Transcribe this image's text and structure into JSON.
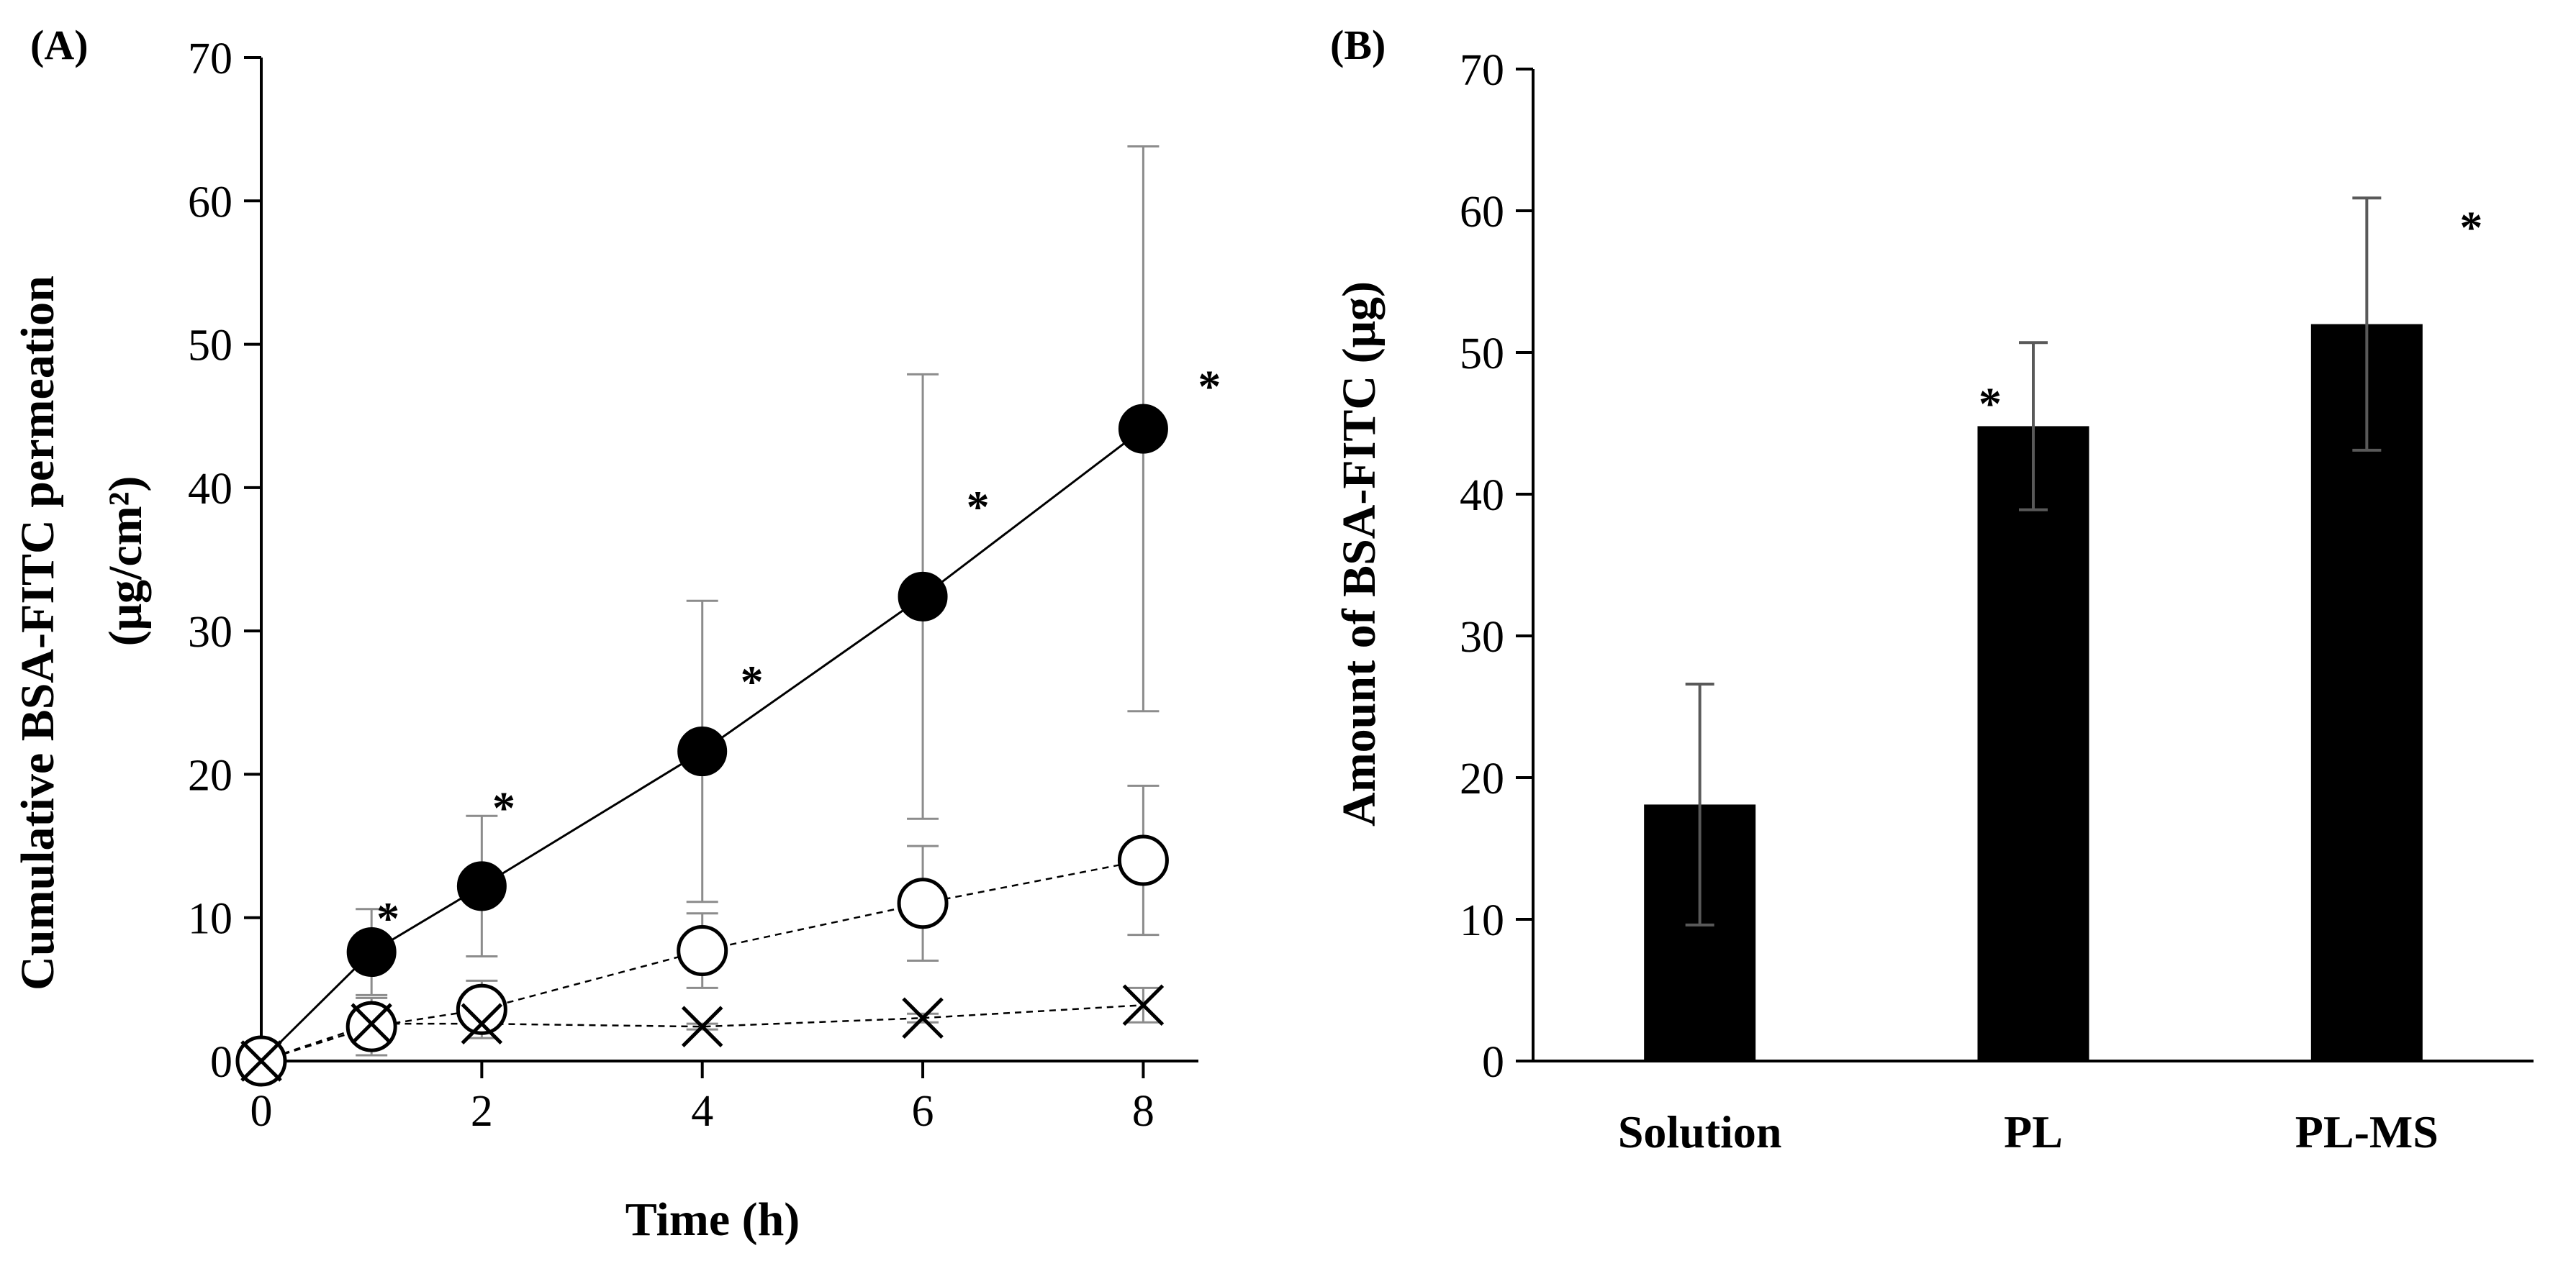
{
  "chart_data": [
    {
      "panel_label": "(A)",
      "type": "line",
      "xlabel": "Time (h)",
      "ylabel_line1": "Cumulative BSA-FITC permeation",
      "ylabel_line2": "(μg/cm²)",
      "xlim": [
        0,
        8.5
      ],
      "ylim": [
        0,
        70
      ],
      "xticks": [
        "0",
        "2",
        "4",
        "6",
        "8"
      ],
      "yticks": [
        "0",
        "10",
        "20",
        "30",
        "40",
        "50",
        "60",
        "70"
      ],
      "x": [
        0,
        1,
        2,
        4,
        6,
        8
      ],
      "series": [
        {
          "name": "filled-circle",
          "marker": "filled-circle",
          "line": "solid",
          "values": [
            0,
            7.6,
            12.2,
            21.6,
            32.4,
            44.1
          ],
          "errors": [
            0,
            3.0,
            4.9,
            10.5,
            15.5,
            19.7
          ]
        },
        {
          "name": "open-circle",
          "marker": "open-circle",
          "line": "dashed",
          "values": [
            0,
            2.4,
            3.6,
            7.7,
            11.0,
            14.0
          ],
          "errors": [
            0,
            2.0,
            2.0,
            2.6,
            4.0,
            5.2
          ]
        },
        {
          "name": "cross",
          "marker": "cross",
          "line": "dashed",
          "values": [
            0,
            2.6,
            2.6,
            2.4,
            3.0,
            3.9
          ],
          "errors": [
            0,
            0.2,
            0.2,
            0.2,
            0.3,
            1.2
          ]
        }
      ],
      "annotations": [
        {
          "text": "*",
          "x": 1.15,
          "y": 10.9
        },
        {
          "text": "*",
          "x": 2.2,
          "y": 18.6
        },
        {
          "text": "*",
          "x": 4.45,
          "y": 27.4
        },
        {
          "text": "*",
          "x": 6.5,
          "y": 39.6
        },
        {
          "text": "*",
          "x": 8.6,
          "y": 48.0
        }
      ]
    },
    {
      "panel_label": "(B)",
      "type": "bar",
      "ylabel": "Amount of BSA-FITC (μg)",
      "ylim": [
        0,
        70
      ],
      "yticks": [
        "0",
        "10",
        "20",
        "30",
        "40",
        "50",
        "60",
        "70"
      ],
      "categories": [
        "Solution",
        "PL",
        "PL-MS"
      ],
      "values": [
        18.1,
        44.8,
        52.0
      ],
      "errors": [
        8.5,
        5.9,
        8.9
      ],
      "significant": [
        false,
        true,
        true
      ],
      "star_label": "*"
    }
  ],
  "colors": {
    "ink": "#000000",
    "errorbar_a": "#8c8c8c",
    "errorbar_b": "#595959",
    "bar_fill": "#000000",
    "background": "#ffffff"
  }
}
